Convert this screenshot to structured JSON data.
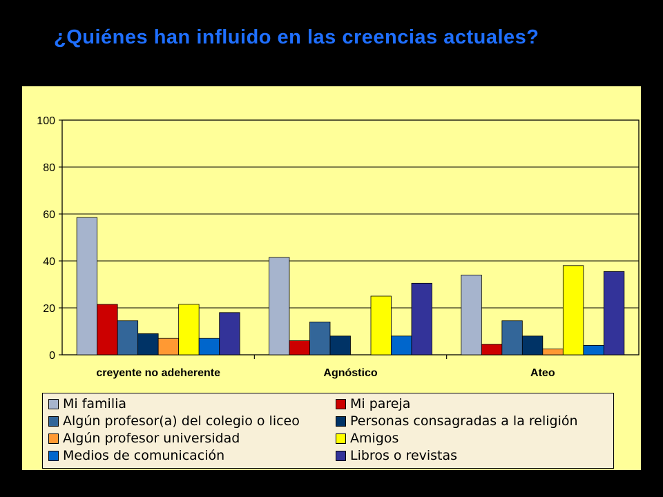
{
  "slide": {
    "title": "¿Quiénes han influido en las creencias actuales?"
  },
  "colors": {
    "background": "#000000",
    "panel": "#FFFF99",
    "title": "#1F6FFF",
    "legend_bg": "#F8F0D8"
  },
  "chart_data": {
    "type": "bar",
    "categories": [
      "creyente no adeherente",
      "Agnóstico",
      "Ateo"
    ],
    "ylim": [
      0,
      100
    ],
    "yticks": [
      0,
      20,
      40,
      60,
      80,
      100
    ],
    "grid": true,
    "legend_position": "bottom",
    "series": [
      {
        "name": "Mi familia",
        "color": "#A6B4CD",
        "values": [
          58.5,
          41.5,
          34
        ]
      },
      {
        "name": "Mi pareja",
        "color": "#CC0000",
        "values": [
          21.5,
          6,
          4.5
        ]
      },
      {
        "name": "Algún profesor(a) del colegio o liceo",
        "color": "#336699",
        "values": [
          14.5,
          14,
          14.5
        ]
      },
      {
        "name": "Personas consagradas a la religión",
        "color": "#003366",
        "values": [
          9,
          8,
          8
        ]
      },
      {
        "name": "Algún profesor universidad",
        "color": "#FF9933",
        "values": [
          7,
          0,
          2.5
        ]
      },
      {
        "name": "Amigos",
        "color": "#FFFF00",
        "values": [
          21.5,
          25,
          38
        ]
      },
      {
        "name": "Medios de comunicación",
        "color": "#0066CC",
        "values": [
          7,
          8,
          4
        ]
      },
      {
        "name": "Libros o revistas",
        "color": "#333399",
        "values": [
          18,
          30.5,
          35.5
        ]
      }
    ]
  }
}
